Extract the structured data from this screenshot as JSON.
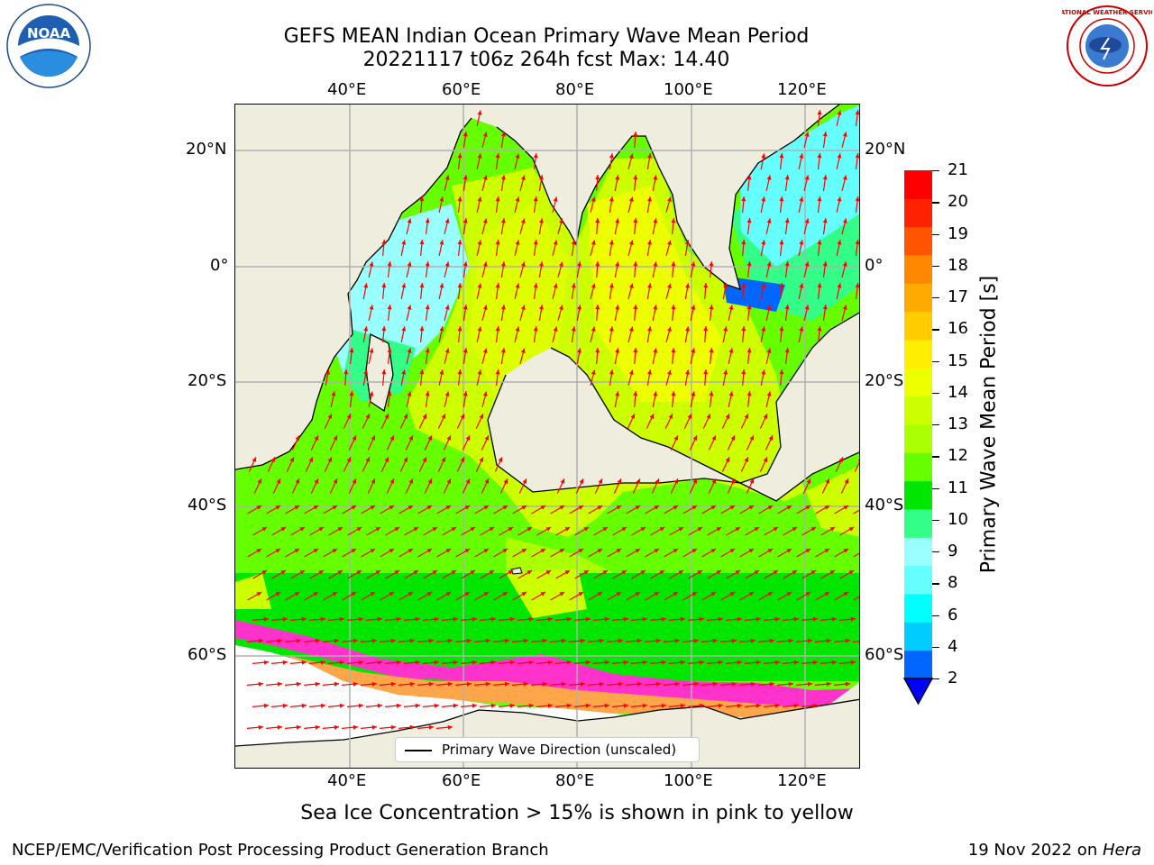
{
  "title": {
    "line1": "GEFS MEAN Indian Ocean Primary Wave Mean Period",
    "line2": "20221117 t06z 264h fcst   Max: 14.40"
  },
  "map": {
    "lon_labels": [
      "40°E",
      "60°E",
      "80°E",
      "100°E",
      "120°E"
    ],
    "lat_labels": [
      "20°N",
      "0°",
      "20°S",
      "40°S",
      "60°S"
    ],
    "lon_range": [
      20,
      130
    ],
    "lat_range": [
      -76,
      28
    ],
    "legend_label": "Primary Wave Direction (unscaled)",
    "colors": {
      "land": "#efeddd",
      "arrow": "#ff0000",
      "ice_pink": "#ff33cc",
      "ice_orange": "#ffa54a"
    }
  },
  "colorbar": {
    "title": "Primary Wave Mean Period [s]",
    "tick_labels": [
      "2",
      "4",
      "6",
      "8",
      "9",
      "10",
      "11",
      "12",
      "13",
      "14",
      "15",
      "16",
      "17",
      "18",
      "19",
      "20",
      "21"
    ],
    "colors": [
      "#0066ff",
      "#00ccff",
      "#00ffff",
      "#66ffff",
      "#99ffff",
      "#33ff88",
      "#00e600",
      "#66ff00",
      "#aaff00",
      "#ccff00",
      "#eeff00",
      "#ffee00",
      "#ffcc00",
      "#ffaa00",
      "#ff8800",
      "#ff5500",
      "#ff2200",
      "#ff0000"
    ],
    "extend_color": "#0000ff"
  },
  "subtitle": "Sea Ice Concentration > 15% is shown in pink to yellow",
  "footer": {
    "left": "NCEP/EMC/Verification Post Processing Product Generation Branch",
    "right_date": "19 Nov 2022 on ",
    "right_machine": "Hera"
  },
  "logos": {
    "left_text": "NOAA",
    "right_text": "NATIONAL WEATHER SERVICE"
  }
}
